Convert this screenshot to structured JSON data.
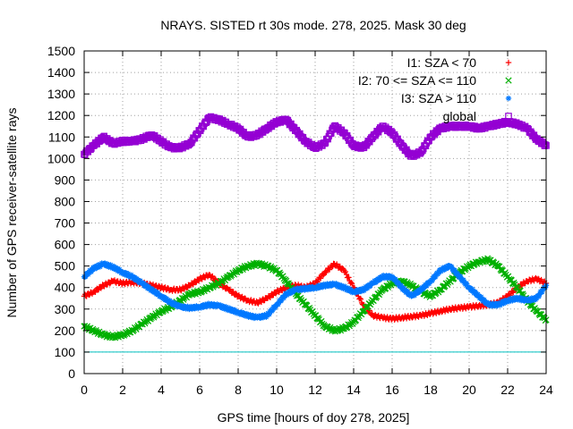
{
  "chart_data": {
    "type": "scatter",
    "title": "NRAYS. SISTED rt 30s mode. 278, 2025. Mask 30 deg",
    "xlabel": "GPS time [hours of doy 278, 2025]",
    "ylabel": "Number of GPS receiver-satellite rays",
    "xlim": [
      0,
      24
    ],
    "ylim": [
      0,
      1500
    ],
    "xticks": [
      "0",
      "2",
      "4",
      "6",
      "8",
      "10",
      "12",
      "14",
      "16",
      "18",
      "20",
      "22",
      "24"
    ],
    "yticks": [
      "0",
      "100",
      "200",
      "300",
      "400",
      "500",
      "600",
      "700",
      "800",
      "900",
      "1000",
      "1100",
      "1200",
      "1300",
      "1400",
      "1500"
    ],
    "threshold_line": {
      "value": 100,
      "color": "#00c0c0"
    },
    "legend_position": "top-right",
    "series": [
      {
        "name": "I1: SZA < 70",
        "marker": "+",
        "color": "#ff0000",
        "x": [
          0,
          0.5,
          1,
          1.5,
          2,
          2.5,
          3,
          3.5,
          4,
          4.5,
          5,
          5.5,
          6,
          6.5,
          7,
          7.5,
          8,
          8.5,
          9,
          9.5,
          10,
          10.5,
          11,
          11.5,
          12,
          12.5,
          13,
          13.5,
          14,
          14.5,
          15,
          15.5,
          16,
          16.5,
          17,
          17.5,
          18,
          18.5,
          19,
          19.5,
          20,
          20.5,
          21,
          21.5,
          22,
          22.5,
          23,
          23.5,
          24
        ],
        "values": [
          360,
          380,
          410,
          430,
          420,
          425,
          420,
          410,
          400,
          390,
          390,
          410,
          440,
          460,
          420,
          390,
          360,
          340,
          330,
          350,
          380,
          400,
          410,
          400,
          420,
          470,
          510,
          480,
          400,
          320,
          270,
          260,
          255,
          260,
          265,
          270,
          280,
          290,
          300,
          305,
          310,
          315,
          320,
          330,
          360,
          400,
          430,
          440,
          420
        ]
      },
      {
        "name": "I2: 70 <= SZA <= 110",
        "marker": "x",
        "color": "#00b000",
        "x": [
          0,
          0.5,
          1,
          1.5,
          2,
          2.5,
          3,
          3.5,
          4,
          4.5,
          5,
          5.5,
          6,
          6.5,
          7,
          7.5,
          8,
          8.5,
          9,
          9.5,
          10,
          10.5,
          11,
          11.5,
          12,
          12.5,
          13,
          13.5,
          14,
          14.5,
          15,
          15.5,
          16,
          16.5,
          17,
          17.5,
          18,
          18.5,
          19,
          19.5,
          20,
          20.5,
          21,
          21.5,
          22,
          22.5,
          23,
          23.5,
          24
        ],
        "values": [
          220,
          200,
          180,
          170,
          180,
          200,
          230,
          260,
          290,
          310,
          340,
          370,
          380,
          400,
          420,
          450,
          480,
          500,
          510,
          500,
          480,
          430,
          370,
          320,
          270,
          220,
          200,
          210,
          240,
          290,
          340,
          390,
          420,
          430,
          410,
          380,
          360,
          390,
          430,
          470,
          500,
          520,
          530,
          500,
          450,
          400,
          340,
          290,
          250
        ]
      },
      {
        "name": "I3: SZA > 110",
        "marker": "*",
        "color": "#0078ff",
        "x": [
          0,
          0.5,
          1,
          1.5,
          2,
          2.5,
          3,
          3.5,
          4,
          4.5,
          5,
          5.5,
          6,
          6.5,
          7,
          7.5,
          8,
          8.5,
          9,
          9.5,
          10,
          10.5,
          11,
          11.5,
          12,
          12.5,
          13,
          13.5,
          14,
          14.5,
          15,
          15.5,
          16,
          16.5,
          17,
          17.5,
          18,
          18.5,
          19,
          19.5,
          20,
          20.5,
          21,
          21.5,
          22,
          22.5,
          23,
          23.5,
          24
        ],
        "values": [
          450,
          490,
          510,
          495,
          470,
          450,
          420,
          390,
          360,
          330,
          310,
          305,
          310,
          320,
          315,
          300,
          285,
          270,
          260,
          270,
          320,
          370,
          390,
          395,
          400,
          410,
          415,
          400,
          380,
          390,
          420,
          450,
          450,
          400,
          360,
          390,
          430,
          480,
          500,
          450,
          400,
          360,
          320,
          320,
          340,
          350,
          340,
          350,
          410
        ]
      },
      {
        "name": "global",
        "marker": "square",
        "color": "#9400d3",
        "x": [
          0,
          0.5,
          1,
          1.5,
          2,
          2.5,
          3,
          3.5,
          4,
          4.5,
          5,
          5.5,
          6,
          6.5,
          7,
          7.5,
          8,
          8.5,
          9,
          9.5,
          10,
          10.5,
          11,
          11.5,
          12,
          12.5,
          13,
          13.5,
          14,
          14.5,
          15,
          15.5,
          16,
          16.5,
          17,
          17.5,
          18,
          18.5,
          19,
          19.5,
          20,
          20.5,
          21,
          21.5,
          22,
          22.5,
          23,
          23.5,
          24
        ],
        "values": [
          1020,
          1060,
          1100,
          1070,
          1080,
          1080,
          1090,
          1110,
          1080,
          1050,
          1050,
          1070,
          1130,
          1190,
          1180,
          1160,
          1140,
          1100,
          1110,
          1140,
          1170,
          1180,
          1130,
          1080,
          1050,
          1070,
          1150,
          1120,
          1060,
          1050,
          1100,
          1150,
          1120,
          1060,
          1010,
          1030,
          1100,
          1140,
          1150,
          1150,
          1150,
          1140,
          1150,
          1160,
          1170,
          1160,
          1140,
          1090,
          1060
        ]
      }
    ]
  }
}
